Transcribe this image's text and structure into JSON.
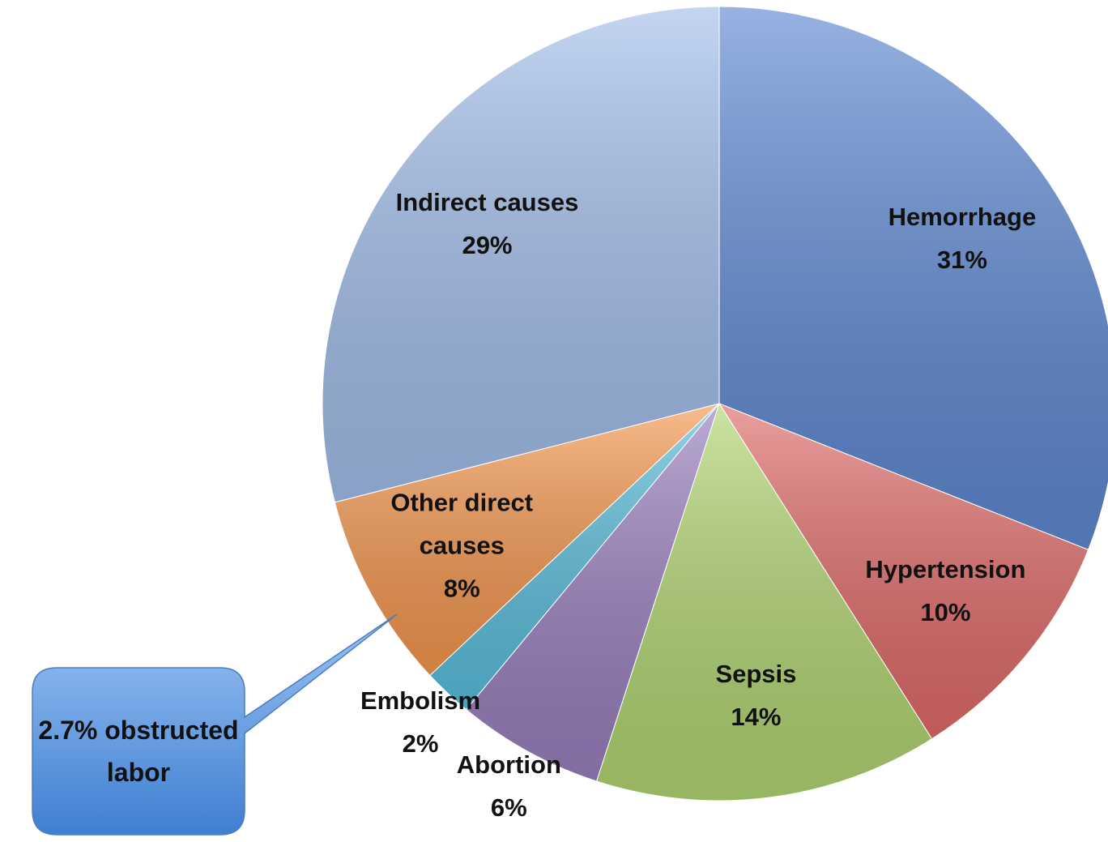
{
  "chart_data": {
    "type": "pie",
    "categories": [
      "Hemorrhage",
      "Hypertension",
      "Sepsis",
      "Abortion",
      "Embolism",
      "Other direct causes",
      "Indirect causes"
    ],
    "values": [
      31,
      10,
      14,
      6,
      2,
      8,
      29
    ],
    "value_labels": [
      "31%",
      "10%",
      "14%",
      "6%",
      "2%",
      "8%",
      "29%"
    ],
    "colors": [
      "#5f8ad4",
      "#e06c6a",
      "#b2d672",
      "#9a80bf",
      "#5bbfdd",
      "#f5984f",
      "#a3bfec"
    ],
    "annotation": "2.7% obstructed labor"
  }
}
